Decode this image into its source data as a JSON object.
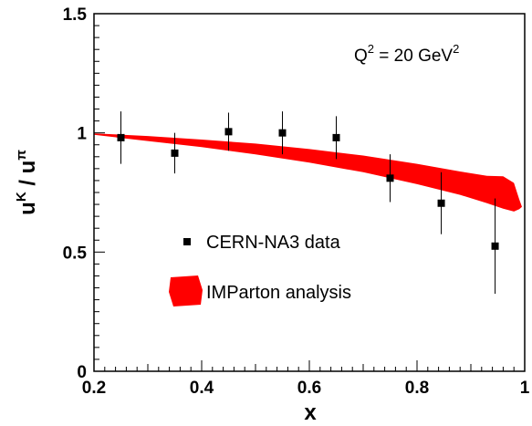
{
  "chart_data": {
    "type": "scatter",
    "xlabel": "x",
    "ylabel": {
      "base1": "u",
      "sup1": "K",
      "sep": " / ",
      "base2": "u",
      "sup2": "π"
    },
    "xlim": [
      0.2,
      1.0
    ],
    "ylim": [
      0,
      1.5
    ],
    "x_ticks": [
      0.2,
      0.4,
      0.6,
      0.8,
      1.0
    ],
    "x_tick_labels": [
      "0.2",
      "0.4",
      "0.6",
      "0.8",
      "1"
    ],
    "y_ticks": [
      0,
      0.5,
      1.0,
      1.5
    ],
    "y_tick_labels": [
      "0",
      "0.5",
      "1",
      "1.5"
    ],
    "annotation": {
      "q": "Q",
      "q_sup": "2",
      "middle": " = 20 GeV",
      "unit_sup": "2"
    },
    "legend_placement": "lower-left-inside",
    "series": [
      {
        "name": "CERN-NA3 data",
        "kind": "points_with_errors",
        "color": "#000000",
        "points": [
          {
            "x": 0.25,
            "y": 0.98,
            "err_low": 0.11,
            "err_high": 0.11
          },
          {
            "x": 0.35,
            "y": 0.915,
            "err_low": 0.085,
            "err_high": 0.085
          },
          {
            "x": 0.45,
            "y": 1.005,
            "err_low": 0.08,
            "err_high": 0.08
          },
          {
            "x": 0.55,
            "y": 1.0,
            "err_low": 0.09,
            "err_high": 0.09
          },
          {
            "x": 0.65,
            "y": 0.98,
            "err_low": 0.09,
            "err_high": 0.09
          },
          {
            "x": 0.75,
            "y": 0.81,
            "err_low": 0.1,
            "err_high": 0.1
          },
          {
            "x": 0.845,
            "y": 0.705,
            "err_low": 0.13,
            "err_high": 0.13
          },
          {
            "x": 0.945,
            "y": 0.525,
            "err_low": 0.2,
            "err_high": 0.2
          }
        ]
      },
      {
        "name": "IMParton analysis",
        "kind": "band",
        "color": "#ff0000",
        "upper": [
          {
            "x": 0.2,
            "y": 0.998
          },
          {
            "x": 0.3,
            "y": 0.987
          },
          {
            "x": 0.4,
            "y": 0.972
          },
          {
            "x": 0.5,
            "y": 0.955
          },
          {
            "x": 0.6,
            "y": 0.932
          },
          {
            "x": 0.7,
            "y": 0.905
          },
          {
            "x": 0.8,
            "y": 0.87
          },
          {
            "x": 0.88,
            "y": 0.838
          },
          {
            "x": 0.93,
            "y": 0.82
          },
          {
            "x": 0.96,
            "y": 0.818
          },
          {
            "x": 0.98,
            "y": 0.79
          },
          {
            "x": 0.99,
            "y": 0.72
          },
          {
            "x": 0.995,
            "y": 0.69
          }
        ],
        "lower": [
          {
            "x": 0.2,
            "y": 0.992
          },
          {
            "x": 0.3,
            "y": 0.966
          },
          {
            "x": 0.4,
            "y": 0.94
          },
          {
            "x": 0.5,
            "y": 0.91
          },
          {
            "x": 0.6,
            "y": 0.875
          },
          {
            "x": 0.7,
            "y": 0.835
          },
          {
            "x": 0.8,
            "y": 0.785
          },
          {
            "x": 0.88,
            "y": 0.74
          },
          {
            "x": 0.93,
            "y": 0.705
          },
          {
            "x": 0.96,
            "y": 0.682
          },
          {
            "x": 0.98,
            "y": 0.67
          },
          {
            "x": 0.99,
            "y": 0.68
          },
          {
            "x": 0.995,
            "y": 0.69
          }
        ]
      }
    ]
  }
}
